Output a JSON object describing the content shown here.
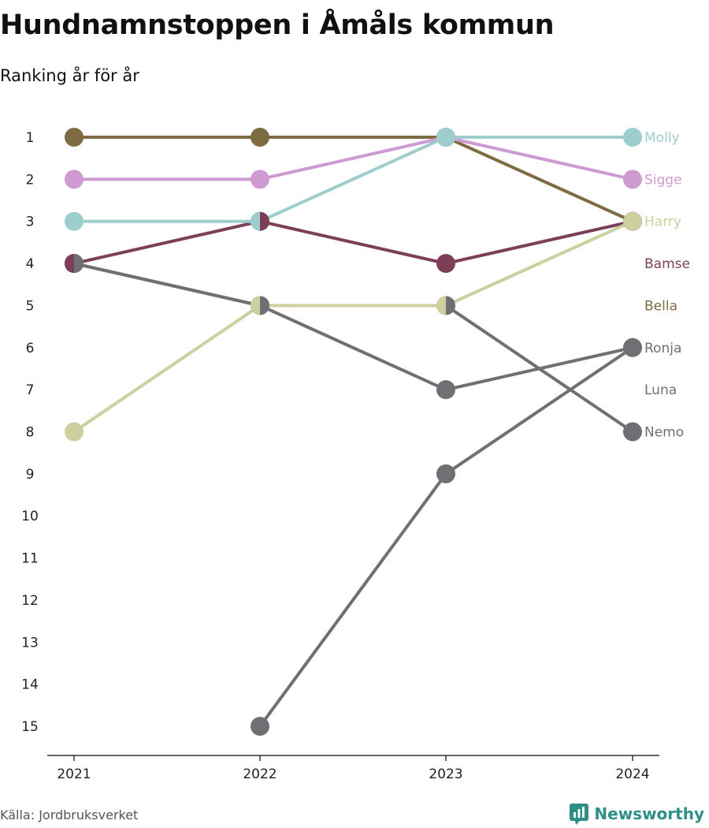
{
  "title": "Hundnamnstoppen i Åmåls kommun",
  "subtitle": "Ranking år för år",
  "source": "Källa: Jordbruksverket",
  "brand": {
    "name": "Newsworthy",
    "icon": "newsworthy-logo-icon",
    "color": "#2e8f86"
  },
  "chart_data": {
    "type": "line",
    "subtype": "bump",
    "x": [
      "2021",
      "2022",
      "2023",
      "2024"
    ],
    "y_ticks": [
      "1",
      "2",
      "3",
      "4",
      "5",
      "6",
      "7",
      "8",
      "9",
      "10",
      "11",
      "12",
      "13",
      "14",
      "15"
    ],
    "ylim": [
      1,
      15
    ],
    "y_reversed": true,
    "grid": false,
    "series": [
      {
        "name": "Luna",
        "color": "#6f6f74",
        "values": [
          null,
          15,
          9,
          6
        ]
      },
      {
        "name": "Nemo",
        "color": "#6f6f74",
        "values": [
          4,
          5,
          5,
          8
        ]
      },
      {
        "name": "Ronja",
        "color": "#6f6f74",
        "values": [
          4,
          5,
          7,
          6
        ]
      },
      {
        "name": "Bella",
        "color": "#7d6c42",
        "values": [
          1,
          1,
          1,
          3
        ]
      },
      {
        "name": "Bamse",
        "color": "#7c3f57",
        "values": [
          4,
          3,
          4,
          3
        ]
      },
      {
        "name": "Harry",
        "color": "#cdcf9e",
        "values": [
          8,
          5,
          5,
          3
        ]
      },
      {
        "name": "Sigge",
        "color": "#cf9ad1",
        "values": [
          2,
          2,
          1,
          2
        ]
      },
      {
        "name": "Molly",
        "color": "#9dcdcd",
        "values": [
          3,
          3,
          1,
          1
        ]
      }
    ],
    "labels": [
      {
        "name": "Molly",
        "rank": 1,
        "color": "#9dcdcd"
      },
      {
        "name": "Sigge",
        "rank": 2,
        "color": "#cf9ad1"
      },
      {
        "name": "Harry",
        "rank": 3,
        "color": "#cdcf9e"
      },
      {
        "name": "Bamse",
        "rank": 4,
        "color": "#7c3f57"
      },
      {
        "name": "Bella",
        "rank": 5,
        "color": "#7d6c42"
      },
      {
        "name": "Ronja",
        "rank": 6,
        "color": "#6f6f74"
      },
      {
        "name": "Luna",
        "rank": 7,
        "color": "#6f6f74"
      },
      {
        "name": "Nemo",
        "rank": 8,
        "color": "#6f6f74"
      }
    ]
  }
}
